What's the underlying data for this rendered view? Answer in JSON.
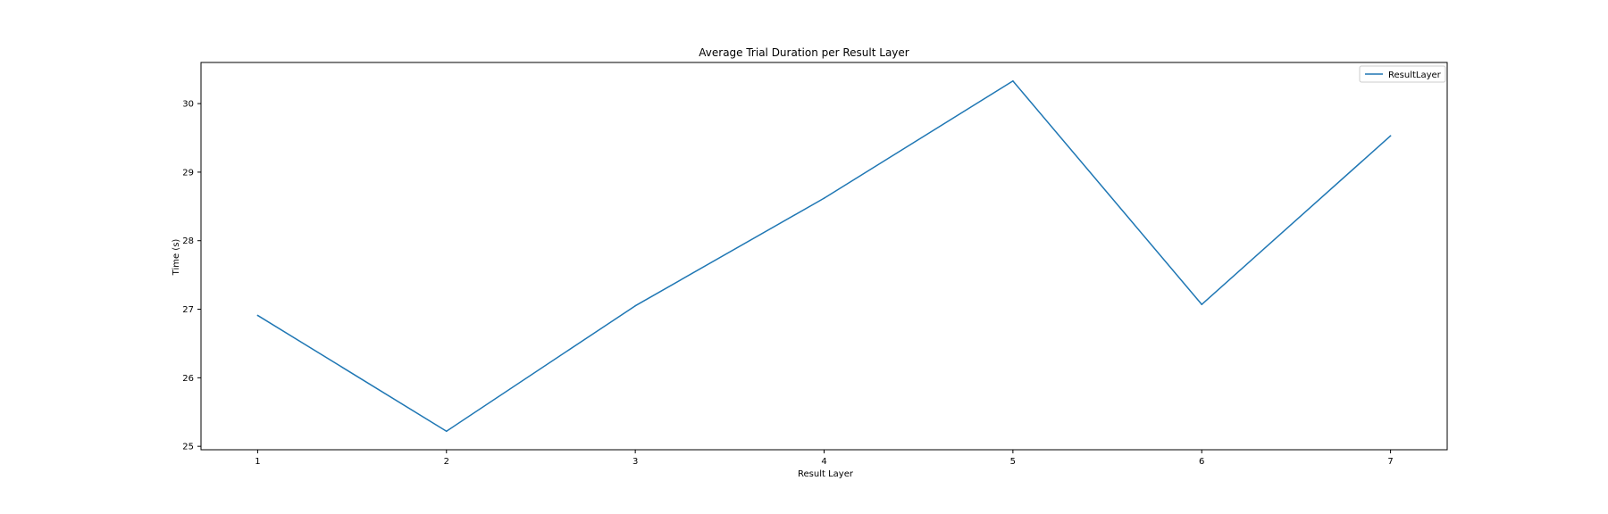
{
  "chart_data": {
    "type": "line",
    "title": "Average Trial Duration per Result Layer",
    "xlabel": "Result Layer",
    "ylabel": "Time (s)",
    "x": [
      1,
      2,
      3,
      4,
      5,
      6,
      7
    ],
    "xlim": [
      0.7,
      7.3
    ],
    "ylim": [
      24.95,
      30.6
    ],
    "xticks": [
      "1",
      "2",
      "3",
      "4",
      "5",
      "6",
      "7"
    ],
    "yticks": [
      "25",
      "26",
      "27",
      "28",
      "29",
      "30"
    ],
    "series": [
      {
        "name": "ResultLayer",
        "color": "#1f77b4",
        "values": [
          26.91,
          25.22,
          27.05,
          28.62,
          30.33,
          27.07,
          29.53
        ]
      }
    ],
    "legend": "upper right",
    "grid": false
  }
}
